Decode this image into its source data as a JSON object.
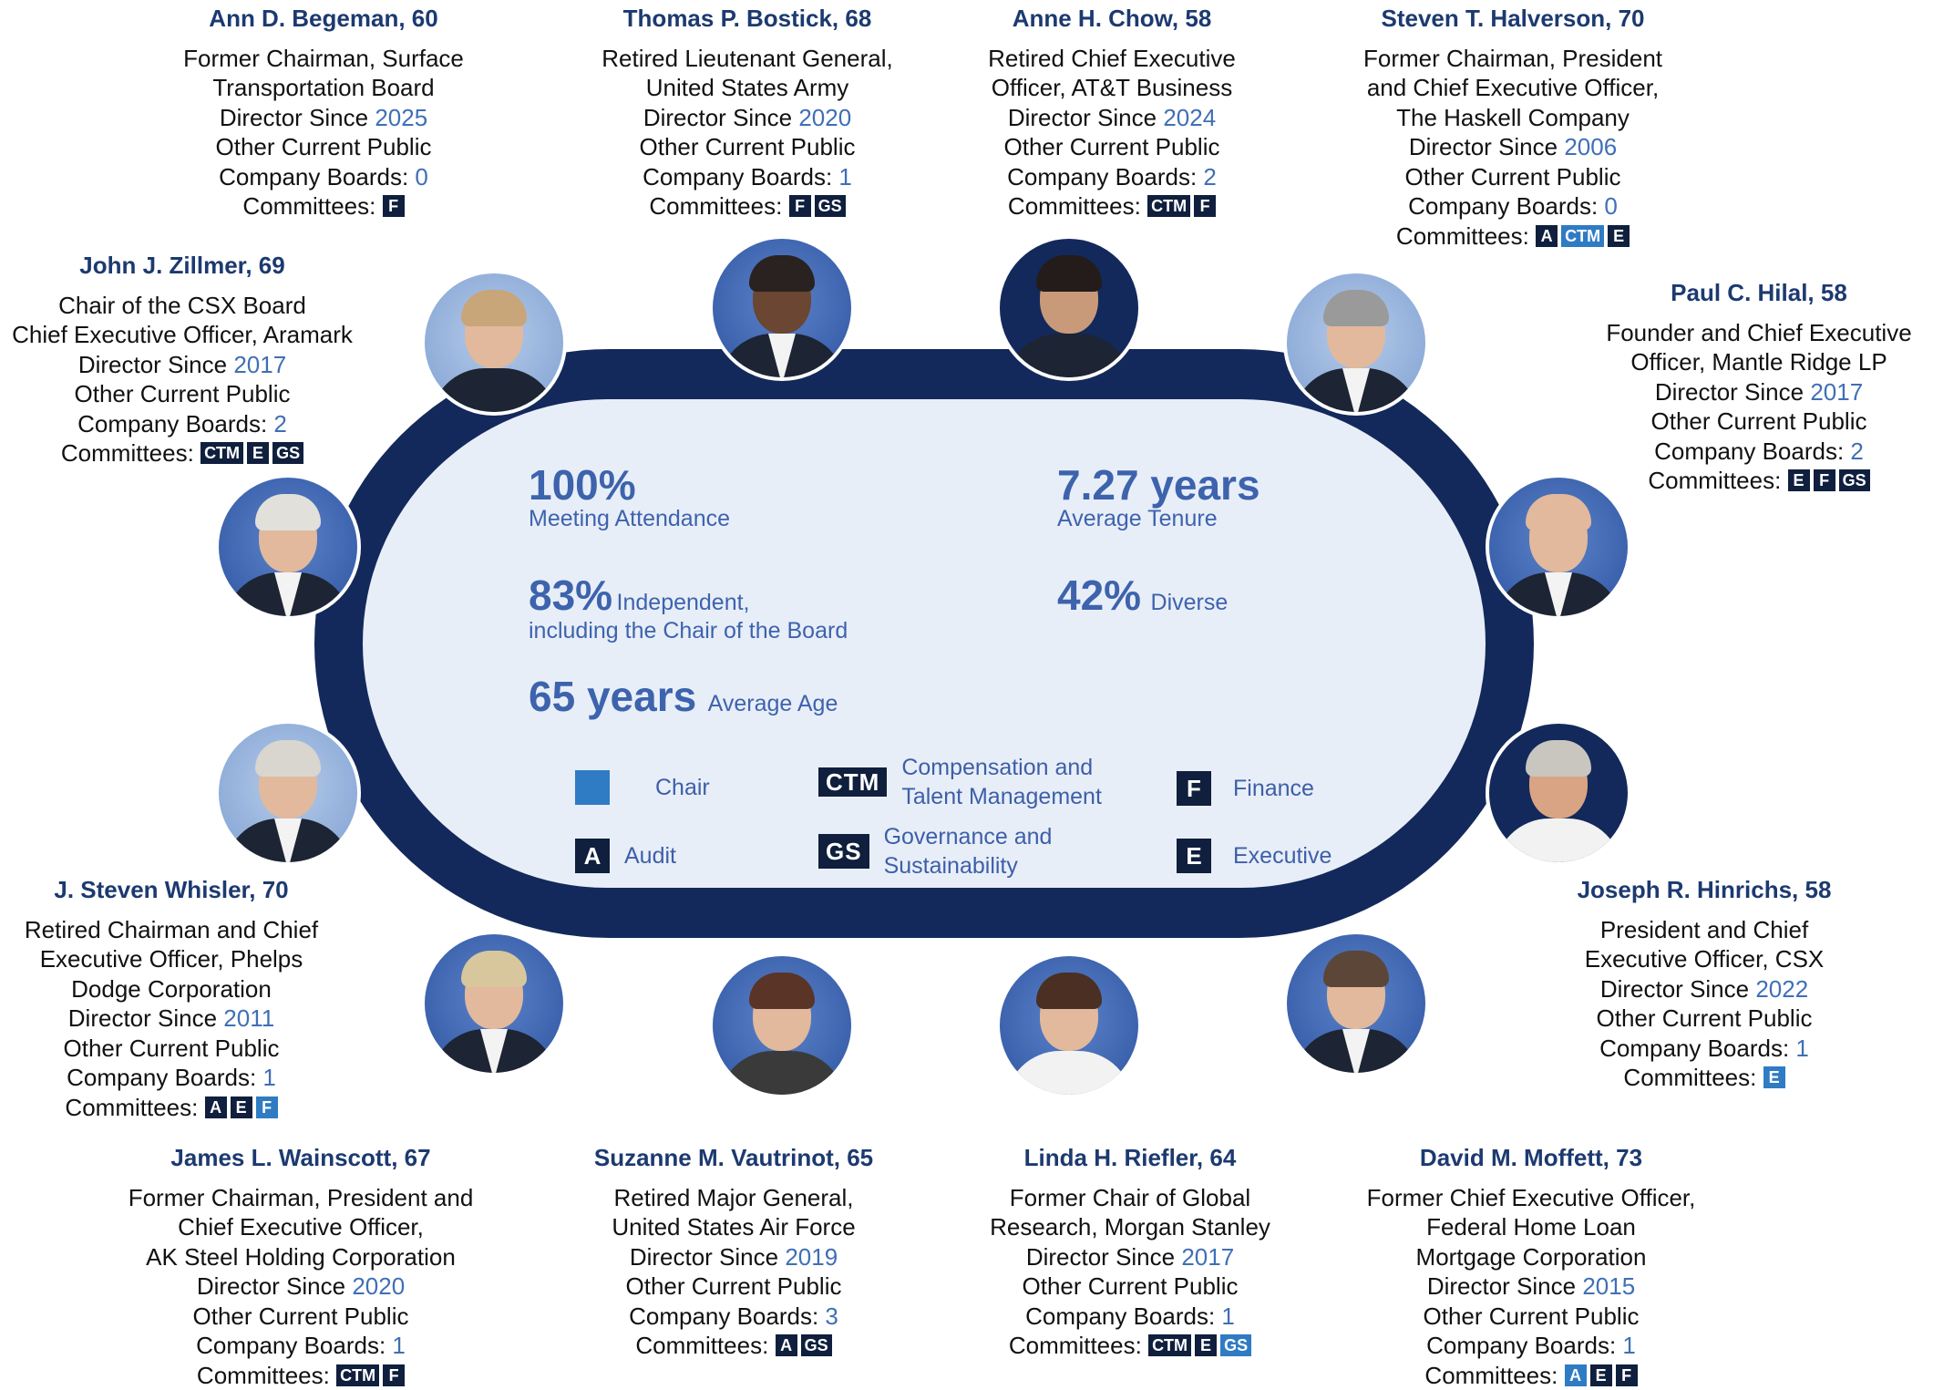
{
  "stats": {
    "attendance_value": "100%",
    "attendance_label": "Meeting Attendance",
    "independent_value": "83%",
    "independent_label1": "Independent,",
    "independent_label2": "including the Chair of the Board",
    "age_value": "65 years",
    "age_label": "Average Age",
    "tenure_value": "7.27 years",
    "tenure_label": "Average Tenure",
    "diverse_value": "42%",
    "diverse_label": "Diverse"
  },
  "legend": {
    "chair": "Chair",
    "audit_code": "A",
    "audit": "Audit",
    "ctm_code": "CTM",
    "ctm_line1": "Compensation and",
    "ctm_line2": "Talent Management",
    "gs_code": "GS",
    "gs_line1": "Governance and",
    "gs_line2": "Sustainability",
    "finance_code": "F",
    "finance": "Finance",
    "executive_code": "E",
    "executive": "Executive"
  },
  "labels": {
    "director_since": "Director Since ",
    "other_boards_1": "Other Current Public",
    "other_boards_2": "Company Boards: ",
    "committees": "Committees: "
  },
  "directors": [
    {
      "name": "Ann D. Begeman, 60",
      "title": [
        "Former Chairman, Surface",
        "Transportation Board"
      ],
      "since": "2025",
      "boards": "0",
      "committees": [
        {
          "code": "F",
          "chair": false
        }
      ]
    },
    {
      "name": "Thomas P. Bostick, 68",
      "title": [
        "Retired Lieutenant General,",
        "United States Army"
      ],
      "since": "2020",
      "boards": "1",
      "committees": [
        {
          "code": "F",
          "chair": false
        },
        {
          "code": "GS",
          "chair": false
        }
      ]
    },
    {
      "name": "Anne H. Chow, 58",
      "title": [
        "Retired Chief Executive",
        "Officer, AT&T Business"
      ],
      "since": "2024",
      "boards": "2",
      "committees": [
        {
          "code": "CTM",
          "chair": false
        },
        {
          "code": "F",
          "chair": false
        }
      ]
    },
    {
      "name": "Steven T. Halverson, 70",
      "title": [
        "Former Chairman, President",
        "and Chief Executive Officer,",
        "The Haskell Company"
      ],
      "since": "2006",
      "boards": "0",
      "committees": [
        {
          "code": "A",
          "chair": false
        },
        {
          "code": "CTM",
          "chair": true
        },
        {
          "code": "E",
          "chair": false
        }
      ]
    },
    {
      "name": "John J. Zillmer, 69",
      "title": [
        "Chair of the CSX Board",
        "Chief Executive Officer, Aramark"
      ],
      "since": "2017",
      "boards": "2",
      "committees": [
        {
          "code": "CTM",
          "chair": false
        },
        {
          "code": "E",
          "chair": false
        },
        {
          "code": "GS",
          "chair": false
        }
      ]
    },
    {
      "name": "Paul C. Hilal, 58",
      "title": [
        "Founder and Chief Executive",
        "Officer, Mantle Ridge LP"
      ],
      "since": "2017",
      "boards": "2",
      "committees": [
        {
          "code": "E",
          "chair": false
        },
        {
          "code": "F",
          "chair": false
        },
        {
          "code": "GS",
          "chair": false
        }
      ]
    },
    {
      "name": "J. Steven Whisler, 70",
      "title": [
        "Retired Chairman and Chief",
        "Executive Officer, Phelps",
        "Dodge Corporation"
      ],
      "since": "2011",
      "boards": "1",
      "committees": [
        {
          "code": "A",
          "chair": false
        },
        {
          "code": "E",
          "chair": false
        },
        {
          "code": "F",
          "chair": true
        }
      ]
    },
    {
      "name": "Joseph R. Hinrichs, 58",
      "title": [
        "President and Chief",
        "Executive Officer, CSX"
      ],
      "since": "2022",
      "boards": "1",
      "committees": [
        {
          "code": "E",
          "chair": true
        }
      ]
    },
    {
      "name": "James L. Wainscott, 67",
      "title": [
        "Former Chairman, President and",
        "Chief Executive Officer,",
        "AK Steel Holding Corporation"
      ],
      "since": "2020",
      "boards": "1",
      "committees": [
        {
          "code": "CTM",
          "chair": false
        },
        {
          "code": "F",
          "chair": false
        }
      ]
    },
    {
      "name": "Suzanne M. Vautrinot, 65",
      "title": [
        "Retired Major General,",
        "United States Air Force"
      ],
      "since": "2019",
      "boards": "3",
      "committees": [
        {
          "code": "A",
          "chair": false
        },
        {
          "code": "GS",
          "chair": false
        }
      ]
    },
    {
      "name": "Linda H. Riefler, 64",
      "title": [
        "Former Chair of Global",
        "Research, Morgan Stanley"
      ],
      "since": "2017",
      "boards": "1",
      "committees": [
        {
          "code": "CTM",
          "chair": false
        },
        {
          "code": "E",
          "chair": false
        },
        {
          "code": "GS",
          "chair": true
        }
      ]
    },
    {
      "name": "David M. Moffett, 73",
      "title": [
        "Former Chief Executive Officer,",
        "Federal Home Loan",
        "Mortgage Corporation"
      ],
      "since": "2015",
      "boards": "1",
      "committees": [
        {
          "code": "A",
          "chair": true
        },
        {
          "code": "E",
          "chair": false
        },
        {
          "code": "F",
          "chair": false
        }
      ]
    }
  ],
  "colors": {
    "table_ring": "#13295b",
    "table_fill": "#e8eef8",
    "accent_blue": "#3d63ad",
    "chair_blue": "#2f7bc4",
    "committee_dark": "#0f1f3d",
    "name_navy": "#1c3a70"
  }
}
